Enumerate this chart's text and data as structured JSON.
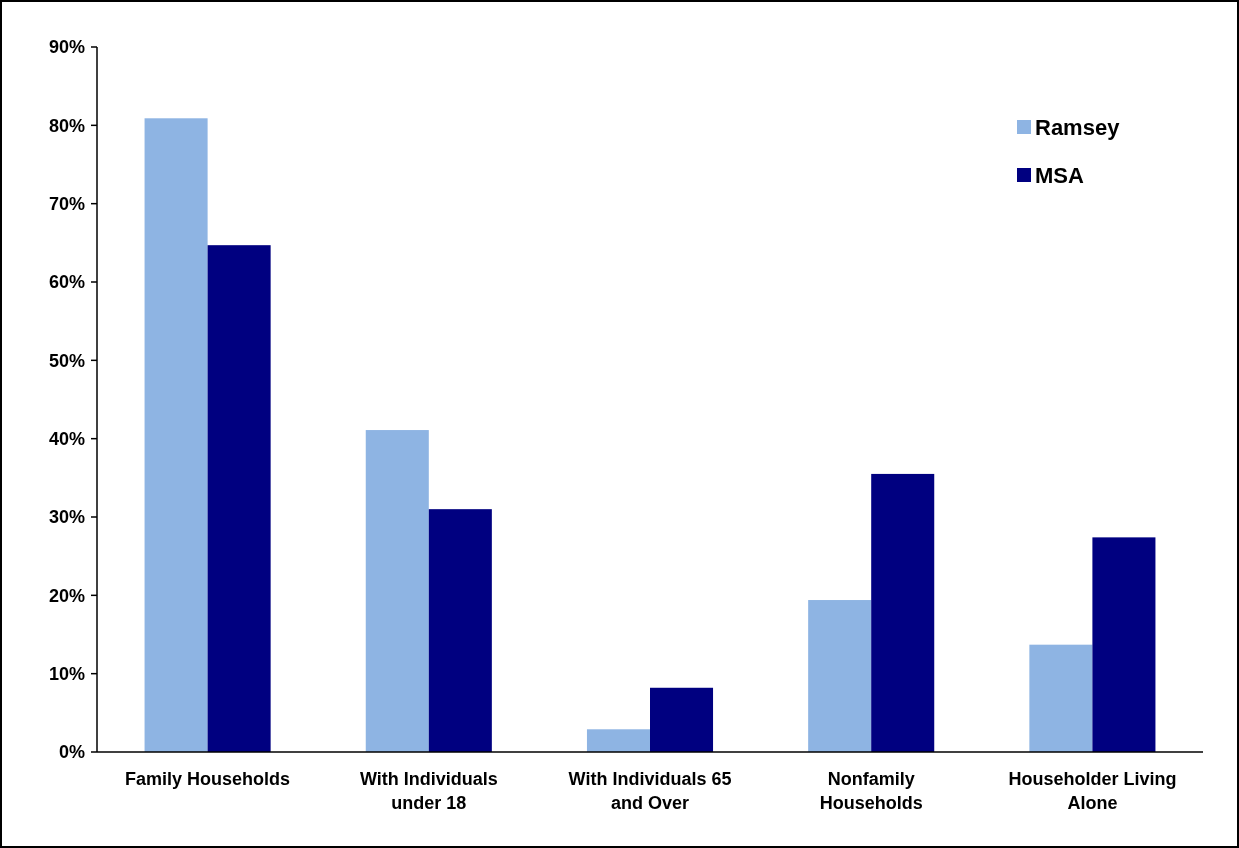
{
  "chart_data": {
    "type": "bar",
    "categories": [
      "Family Households",
      "With Individuals under 18",
      "With Individuals 65 and Over",
      "Nonfamily Households",
      "Householder Living Alone"
    ],
    "series": [
      {
        "name": "Ramsey",
        "color": "#8eb4e3",
        "values": [
          80.9,
          41.1,
          2.9,
          19.4,
          13.7
        ]
      },
      {
        "name": "MSA",
        "color": "#000080",
        "values": [
          64.7,
          31.0,
          8.2,
          35.5,
          27.4
        ]
      }
    ],
    "ylim": [
      0,
      90
    ],
    "yticks": [
      {
        "value": 0,
        "label": "0%"
      },
      {
        "value": 10,
        "label": "10%"
      },
      {
        "value": 20,
        "label": "20%"
      },
      {
        "value": 30,
        "label": "30%"
      },
      {
        "value": 40,
        "label": "40%"
      },
      {
        "value": 50,
        "label": "50%"
      },
      {
        "value": 60,
        "label": "60%"
      },
      {
        "value": 70,
        "label": "70%"
      },
      {
        "value": 80,
        "label": "80%"
      },
      {
        "value": 90,
        "label": "90%"
      }
    ],
    "grid": false,
    "legend": "top right"
  }
}
